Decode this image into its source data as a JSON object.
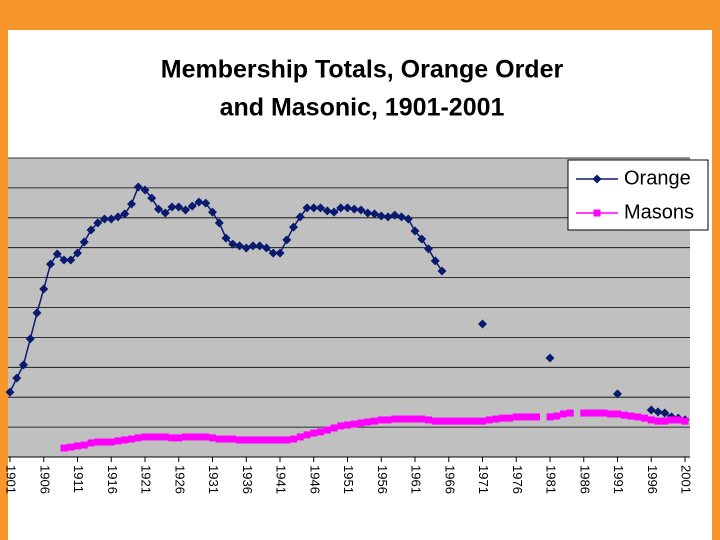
{
  "chart_data": {
    "type": "line",
    "title": "Membership Totals, Orange Order",
    "subtitle": "and Masonic, 1901-2001",
    "x": [
      1901,
      1902,
      1903,
      1904,
      1905,
      1906,
      1907,
      1908,
      1909,
      1910,
      1911,
      1912,
      1913,
      1914,
      1915,
      1916,
      1917,
      1918,
      1919,
      1920,
      1921,
      1922,
      1923,
      1924,
      1925,
      1926,
      1927,
      1928,
      1929,
      1930,
      1931,
      1932,
      1933,
      1934,
      1935,
      1936,
      1937,
      1938,
      1939,
      1940,
      1941,
      1942,
      1943,
      1944,
      1945,
      1946,
      1947,
      1948,
      1949,
      1950,
      1951,
      1952,
      1953,
      1954,
      1955,
      1956,
      1957,
      1958,
      1959,
      1960,
      1961,
      1962,
      1963,
      1964,
      1965,
      1966,
      1967,
      1968,
      1969,
      1970,
      1971,
      1972,
      1973,
      1974,
      1975,
      1976,
      1977,
      1978,
      1979,
      1980,
      1981,
      1982,
      1983,
      1984,
      1985,
      1986,
      1987,
      1988,
      1989,
      1990,
      1991,
      1992,
      1993,
      1994,
      1995,
      1996,
      1997,
      1998,
      1999,
      2000,
      2001
    ],
    "series": [
      {
        "name": "Orange",
        "color": "#0a1a6e",
        "marker": "diamond",
        "values": [
          21.7,
          26.4,
          30.8,
          39.5,
          48.2,
          56.2,
          64.5,
          67.9,
          65.9,
          65.9,
          68.2,
          71.9,
          75.9,
          78.3,
          79.6,
          79.6,
          80.3,
          81.3,
          84.6,
          90.3,
          89.3,
          86.6,
          82.9,
          81.6,
          83.6,
          83.6,
          82.6,
          83.9,
          85.3,
          84.9,
          81.9,
          78.3,
          73.2,
          71.2,
          70.6,
          69.9,
          70.6,
          70.6,
          69.9,
          68.2,
          68.2,
          72.6,
          76.9,
          80.3,
          83.3,
          83.3,
          83.3,
          82.3,
          81.9,
          83.3,
          83.3,
          82.9,
          82.6,
          81.6,
          81.3,
          80.6,
          80.3,
          80.9,
          80.3,
          79.6,
          75.6,
          72.9,
          69.6,
          65.6,
          62.2,
          null,
          null,
          null,
          null,
          null,
          44.5,
          null,
          null,
          null,
          null,
          null,
          null,
          null,
          null,
          null,
          33.1,
          null,
          null,
          null,
          null,
          null,
          null,
          null,
          null,
          null,
          21.1,
          null,
          null,
          null,
          null,
          15.7,
          15.1,
          14.7,
          13.4,
          13.0,
          12.4
        ]
      },
      {
        "name": "Masons",
        "color": "#ff00ff",
        "marker": "square",
        "values": [
          null,
          null,
          null,
          null,
          null,
          null,
          null,
          null,
          3.0,
          3.3,
          3.7,
          4.0,
          4.7,
          5.0,
          5.0,
          5.0,
          5.4,
          5.7,
          6.0,
          6.4,
          6.7,
          6.7,
          6.7,
          6.7,
          6.4,
          6.4,
          6.7,
          6.7,
          6.7,
          6.7,
          6.4,
          6.0,
          6.0,
          6.0,
          5.7,
          5.7,
          5.7,
          5.7,
          5.7,
          5.7,
          5.7,
          5.7,
          6.0,
          6.7,
          7.4,
          8.0,
          8.4,
          9.0,
          9.7,
          10.4,
          10.7,
          11.0,
          11.4,
          11.7,
          12.0,
          12.4,
          12.4,
          12.7,
          12.7,
          12.7,
          12.7,
          12.7,
          12.4,
          12.0,
          12.0,
          12.0,
          12.0,
          12.0,
          12.0,
          12.0,
          12.0,
          12.4,
          12.7,
          13.0,
          13.0,
          13.4,
          13.4,
          13.4,
          13.4,
          null,
          13.4,
          13.7,
          14.4,
          14.7,
          null,
          14.7,
          14.7,
          14.7,
          14.7,
          14.4,
          14.4,
          14.0,
          13.7,
          13.4,
          13.0,
          12.4,
          12.0,
          12.0,
          12.4,
          12.4,
          12.0
        ]
      }
    ],
    "xlim": [
      1901,
      2001
    ],
    "xticks": [
      1901,
      1906,
      1911,
      1916,
      1921,
      1926,
      1931,
      1936,
      1941,
      1946,
      1951,
      1956,
      1961,
      1966,
      1971,
      1976,
      1981,
      1986,
      1991,
      1996,
      2001
    ],
    "ylim": [
      0,
      100
    ],
    "yticks": [
      0,
      10,
      20,
      30,
      40,
      50,
      60,
      70,
      80,
      90,
      100
    ],
    "ytick_labels_shown": false,
    "grid": true,
    "legend": "upper right"
  }
}
